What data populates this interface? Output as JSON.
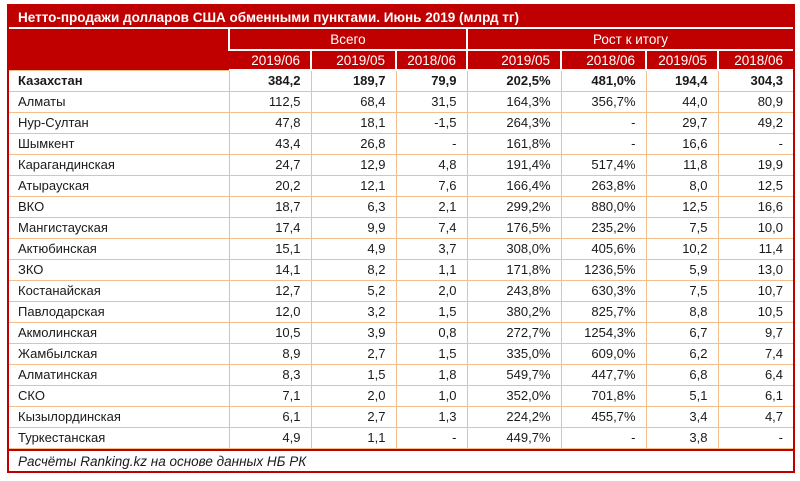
{
  "chart_data": {
    "type": "table",
    "title": "Нетто-продажи долларов США обменными пунктами. Июнь 2019 (млрд тг)",
    "source": "Расчёты Ranking.kz на основе данных НБ РК",
    "column_groups": [
      {
        "label": "Всего",
        "span": 3
      },
      {
        "label": "Рост к итогу",
        "span": 4
      }
    ],
    "columns": [
      "2019/06",
      "2019/05",
      "2018/06",
      "2019/05",
      "2018/06",
      "2019/05",
      "2018/06"
    ],
    "rows": [
      {
        "name": "Казахстан",
        "bold": true,
        "values": [
          "384,2",
          "189,7",
          "79,9",
          "202,5%",
          "481,0%",
          "194,4",
          "304,3"
        ]
      },
      {
        "name": "Алматы",
        "bold": false,
        "values": [
          "112,5",
          "68,4",
          "31,5",
          "164,3%",
          "356,7%",
          "44,0",
          "80,9"
        ]
      },
      {
        "name": "Нур-Султан",
        "bold": false,
        "values": [
          "47,8",
          "18,1",
          "-1,5",
          "264,3%",
          "-",
          "29,7",
          "49,2"
        ]
      },
      {
        "name": "Шымкент",
        "bold": false,
        "values": [
          "43,4",
          "26,8",
          "-",
          "161,8%",
          "-",
          "16,6",
          "-"
        ]
      },
      {
        "name": "Карагандинская",
        "bold": false,
        "values": [
          "24,7",
          "12,9",
          "4,8",
          "191,4%",
          "517,4%",
          "11,8",
          "19,9"
        ]
      },
      {
        "name": "Атырауская",
        "bold": false,
        "values": [
          "20,2",
          "12,1",
          "7,6",
          "166,4%",
          "263,8%",
          "8,0",
          "12,5"
        ]
      },
      {
        "name": "ВКО",
        "bold": false,
        "values": [
          "18,7",
          "6,3",
          "2,1",
          "299,2%",
          "880,0%",
          "12,5",
          "16,6"
        ]
      },
      {
        "name": "Мангистауская",
        "bold": false,
        "values": [
          "17,4",
          "9,9",
          "7,4",
          "176,5%",
          "235,2%",
          "7,5",
          "10,0"
        ]
      },
      {
        "name": "Актюбинская",
        "bold": false,
        "values": [
          "15,1",
          "4,9",
          "3,7",
          "308,0%",
          "405,6%",
          "10,2",
          "11,4"
        ]
      },
      {
        "name": "ЗКО",
        "bold": false,
        "values": [
          "14,1",
          "8,2",
          "1,1",
          "171,8%",
          "1236,5%",
          "5,9",
          "13,0"
        ]
      },
      {
        "name": "Костанайская",
        "bold": false,
        "values": [
          "12,7",
          "5,2",
          "2,0",
          "243,8%",
          "630,3%",
          "7,5",
          "10,7"
        ]
      },
      {
        "name": "Павлодарская",
        "bold": false,
        "values": [
          "12,0",
          "3,2",
          "1,5",
          "380,2%",
          "825,7%",
          "8,8",
          "10,5"
        ]
      },
      {
        "name": "Акмолинская",
        "bold": false,
        "values": [
          "10,5",
          "3,9",
          "0,8",
          "272,7%",
          "1254,3%",
          "6,7",
          "9,7"
        ]
      },
      {
        "name": "Жамбылская",
        "bold": false,
        "values": [
          "8,9",
          "2,7",
          "1,5",
          "335,0%",
          "609,0%",
          "6,2",
          "7,4"
        ]
      },
      {
        "name": "Алматинская",
        "bold": false,
        "values": [
          "8,3",
          "1,5",
          "1,8",
          "549,7%",
          "447,7%",
          "6,8",
          "6,4"
        ]
      },
      {
        "name": "СКО",
        "bold": false,
        "values": [
          "7,1",
          "2,0",
          "1,0",
          "352,0%",
          "701,8%",
          "5,1",
          "6,1"
        ]
      },
      {
        "name": "Кызылординская",
        "bold": false,
        "values": [
          "6,1",
          "2,7",
          "1,3",
          "224,2%",
          "455,7%",
          "3,4",
          "4,7"
        ]
      },
      {
        "name": "Туркестанская",
        "bold": false,
        "values": [
          "4,9",
          "1,1",
          "-",
          "449,7%",
          "-",
          "3,8",
          "-"
        ]
      }
    ],
    "colors": {
      "header_bg": "#c00000",
      "frame_border": "#c00000",
      "body_border": "#f4be8c",
      "header_text": "#ffffff",
      "body_text": "#1a1a1a"
    }
  }
}
